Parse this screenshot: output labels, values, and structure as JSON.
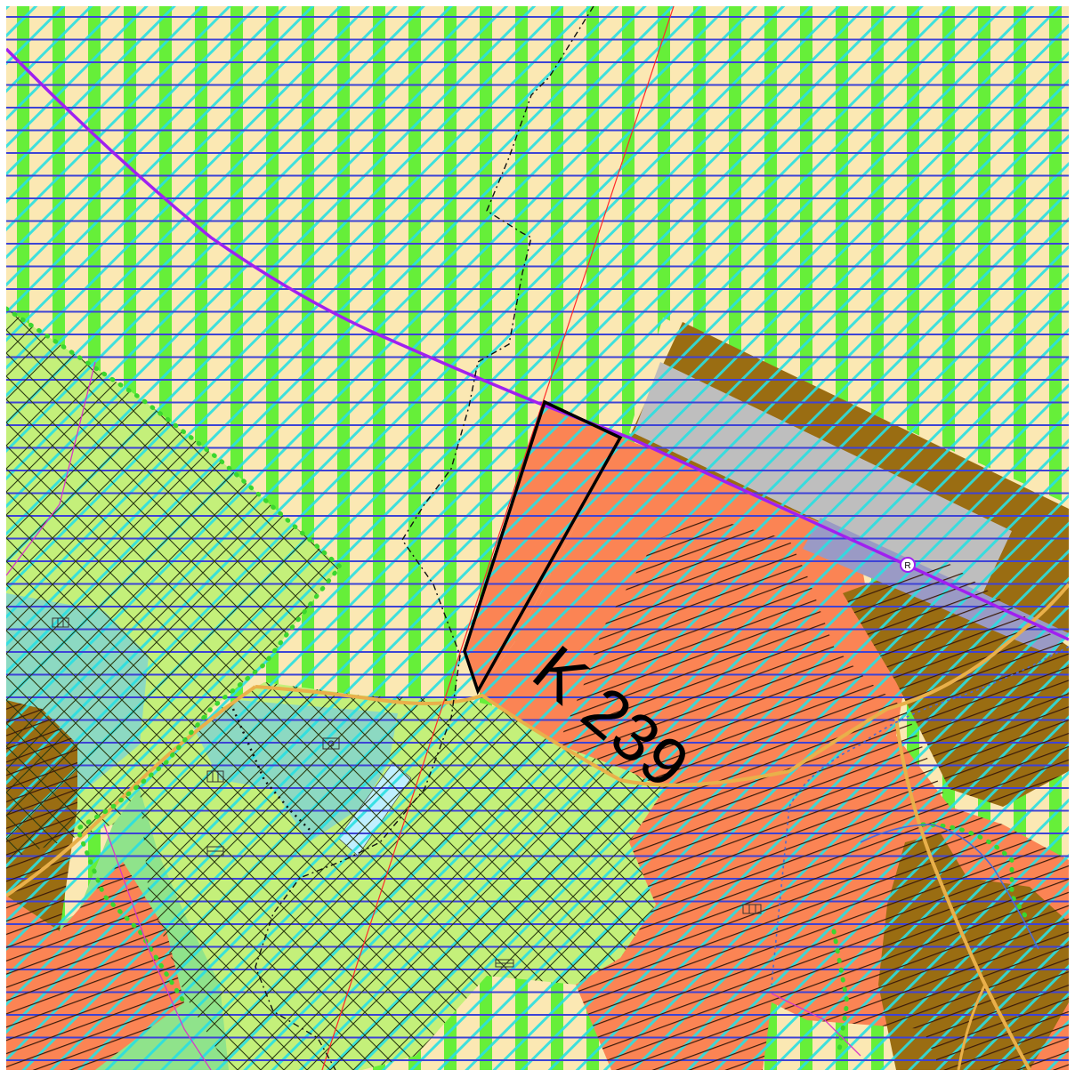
{
  "map": {
    "area_label": "K 239",
    "route_marker": "R",
    "colors": {
      "base_arable": "#fbe8b3",
      "green_stripe": "#66ef39",
      "blue_hatch": "#3e43d6",
      "cyan_hatch": "#29dfe2",
      "light_green_zone": "#c4f07a",
      "forest_green": "#8fe38b",
      "meadow_cyan": "#8cd9c2",
      "building_orange": "#fb8454",
      "brown_plot": "#9a6d12",
      "gray_building": "#bebebe",
      "blue_gray_building": "#9a9ac5",
      "pond_blue": "#bfefff",
      "road_yellow": "#e9b04a",
      "purple_line": "#a020f0",
      "red_line": "#ff2a2a",
      "green_dot_boundary": "#3bd62f",
      "magenta_line": "#d63ac6"
    },
    "symbols": [
      "building-grid-icon",
      "building-square-icon",
      "building-grid-icon",
      "building-grid-icon",
      "building-grid-icon",
      "building-grid-icon"
    ]
  }
}
